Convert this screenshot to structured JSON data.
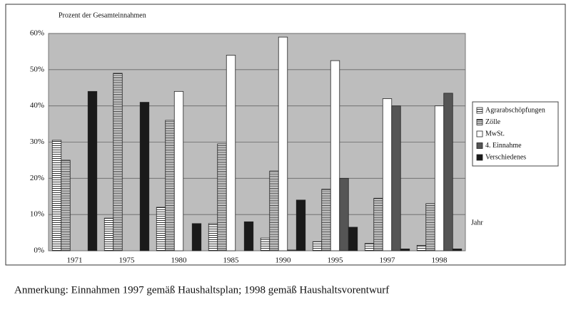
{
  "chart_data": {
    "type": "bar",
    "y_label": "Prozent der Gesamteinnahmen",
    "x_label": "Jahr",
    "annotation": "Anmerkung: Einnahmen 1997 gemäß Haushaltsplan; 1998 gemäß Haushaltsvorentwurf",
    "categories": [
      "1971",
      "1975",
      "1980",
      "1985",
      "1990",
      "1995",
      "1997",
      "1998"
    ],
    "series": [
      {
        "name": "Agrarabschöpfungen",
        "color": "#ffffff",
        "pattern": "horizontal-lines",
        "values": [
          30.5,
          9,
          12,
          7.5,
          3.5,
          2.5,
          2,
          1.5
        ]
      },
      {
        "name": "Zölle",
        "color": "#ffffff",
        "pattern": "dense-horizontal-lines",
        "values": [
          25,
          49,
          36,
          29.5,
          22,
          17,
          14.5,
          13
        ]
      },
      {
        "name": "MwSt.",
        "color": "#ffffff",
        "pattern": "solid",
        "values": [
          0,
          0,
          44,
          54,
          59,
          52.5,
          42,
          40
        ]
      },
      {
        "name": "4. Einnahme",
        "color": "#555555",
        "pattern": "horizontal-lines",
        "values": [
          0,
          0,
          0,
          0,
          0.2,
          20,
          40,
          43.5
        ]
      },
      {
        "name": "Verschiedenes",
        "color": "#1a1a1a",
        "pattern": "solid",
        "values": [
          44,
          41,
          7.5,
          8,
          14,
          6.5,
          0.5,
          0.5
        ]
      }
    ],
    "ylim": [
      0,
      60
    ],
    "yticks": [
      {
        "value": 0,
        "label": "0%"
      },
      {
        "value": 10,
        "label": "10%"
      },
      {
        "value": 20,
        "label": "20%"
      },
      {
        "value": 30,
        "label": "30%"
      },
      {
        "value": 40,
        "label": "40%"
      },
      {
        "value": 50,
        "label": "50%"
      },
      {
        "value": 60,
        "label": "60%"
      }
    ],
    "grid": true,
    "legend": "right"
  }
}
